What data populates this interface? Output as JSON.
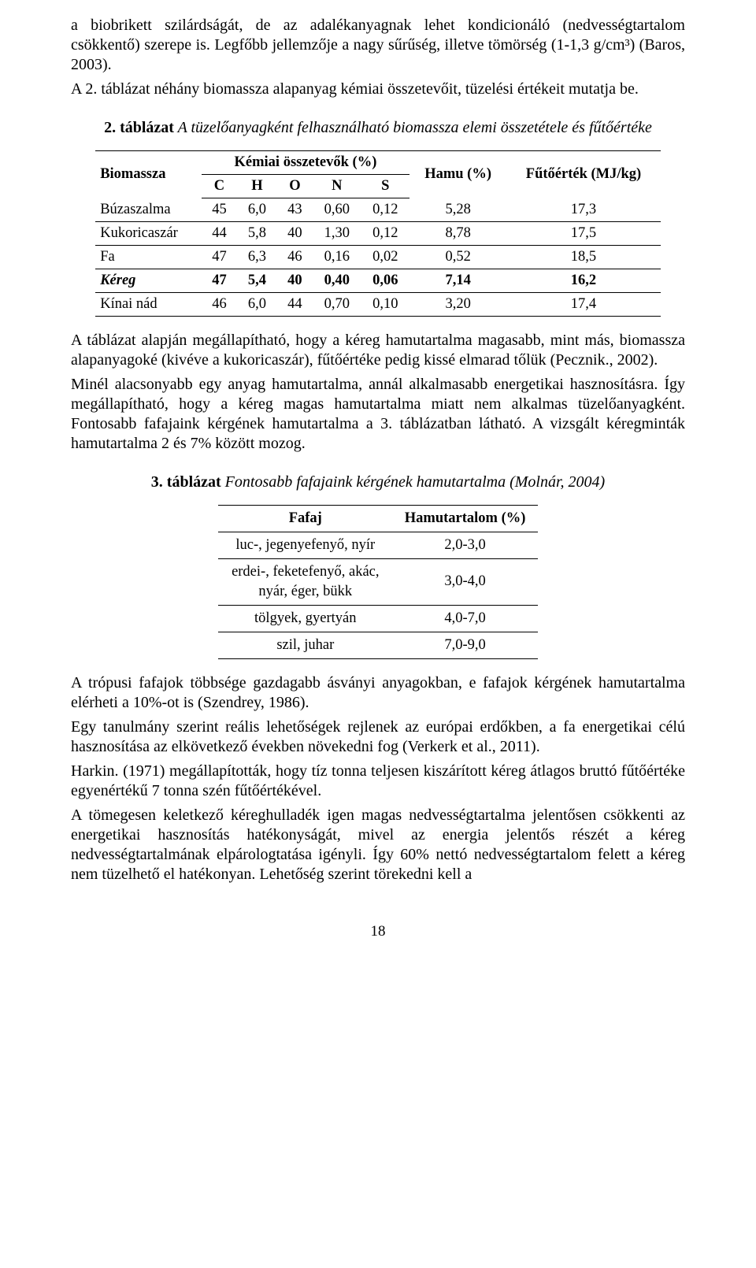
{
  "paragraph1": "a biobrikett szilárdságát, de az adalékanyagnak lehet kondicionáló (nedvességtartalom csökkentő) szerepe is. Legfőbb jellemzője a nagy sűrűség, illetve tömörség (1-1,3 g/cm³) (Baros, 2003).",
  "paragraph1b": "A 2. táblázat néhány biomassza alapanyag kémiai összetevőit, tüzelési értékeit mutatja be.",
  "table2": {
    "caption_num": "2. táblázat",
    "caption_txt": "A tüzelőanyagként felhasználható biomassza elemi összetétele és fűtőértéke",
    "head_biomassza": "Biomassza",
    "head_kemiai": "Kémiai összetevők (%)",
    "head_hamu": "Hamu (%)",
    "head_futo": "Fűtőérték (MJ/kg)",
    "cols": {
      "c": "C",
      "h": "H",
      "o": "O",
      "n": "N",
      "s": "S"
    },
    "rows": [
      {
        "label": "Búzaszalma",
        "c": "45",
        "h": "6,0",
        "o": "43",
        "n": "0,60",
        "s": "0,12",
        "hamu": "5,28",
        "f": "17,3",
        "bold": false
      },
      {
        "label": "Kukoricaszár",
        "c": "44",
        "h": "5,8",
        "o": "40",
        "n": "1,30",
        "s": "0,12",
        "hamu": "8,78",
        "f": "17,5",
        "bold": false
      },
      {
        "label": "Fa",
        "c": "47",
        "h": "6,3",
        "o": "46",
        "n": "0,16",
        "s": "0,02",
        "hamu": "0,52",
        "f": "18,5",
        "bold": false
      },
      {
        "label": "Kéreg",
        "c": "47",
        "h": "5,4",
        "o": "40",
        "n": "0,40",
        "s": "0,06",
        "hamu": "7,14",
        "f": "16,2",
        "bold": true
      },
      {
        "label": "Kínai nád",
        "c": "46",
        "h": "6,0",
        "o": "44",
        "n": "0,70",
        "s": "0,10",
        "hamu": "3,20",
        "f": "17,4",
        "bold": false
      }
    ]
  },
  "paragraph2": "A táblázat alapján megállapítható, hogy a kéreg hamutartalma magasabb, mint más, biomassza alapanyagoké (kivéve a kukoricaszár), fűtőértéke pedig kissé elmarad tőlük (Pecznik., 2002).",
  "paragraph3": "Minél alacsonyabb egy anyag hamutartalma, annál alkalmasabb energetikai hasznosításra. Így megállapítható, hogy a kéreg magas hamutartalma miatt nem alkalmas tüzelőanyagként. Fontosabb fafajaink kérgének hamutartalma a 3. táblázatban látható. A vizsgált kéregminták hamutartalma 2 és 7% között mozog.",
  "table3": {
    "caption_num": "3. táblázat",
    "caption_txt": "Fontosabb fafajaink kérgének hamutartalma (Molnár, 2004)",
    "head_fafaj": "Fafaj",
    "head_hamu": "Hamutartalom (%)",
    "rows": [
      {
        "fafaj": "luc-, jegenyefenyő, nyír",
        "hamu": "2,0-3,0"
      },
      {
        "fafaj": "erdei-, feketefenyő, akác,\nnyár, éger, bükk",
        "hamu": "3,0-4,0"
      },
      {
        "fafaj": "tölgyek, gyertyán",
        "hamu": "4,0-7,0"
      },
      {
        "fafaj": "szil, juhar",
        "hamu": "7,0-9,0"
      }
    ]
  },
  "paragraph4": "A trópusi fafajok többsége gazdagabb ásványi anyagokban, e fafajok kérgének hamutartalma elérheti a 10%-ot is (Szendrey, 1986).",
  "paragraph5": "Egy tanulmány szerint reális lehetőségek rejlenek az európai erdőkben, a fa energetikai célú hasznosítása az elkövetkező években növekedni fog (Verkerk et al., 2011).",
  "paragraph6": "Harkin. (1971) megállapították, hogy tíz tonna teljesen kiszárított kéreg átlagos bruttó fűtőértéke egyenértékű 7 tonna szén fűtőértékével.",
  "paragraph7": "A tömegesen keletkező kéreghulladék igen magas nedvességtartalma jelentősen csökkenti az energetikai hasznosítás hatékonyságát, mivel az energia jelentős részét a kéreg nedvességtartalmának elpárologtatása igényli. Így 60% nettó nedvességtartalom felett a kéreg nem tüzelhető el hatékonyan. Lehetőség szerint törekedni kell a",
  "pagenum": "18"
}
